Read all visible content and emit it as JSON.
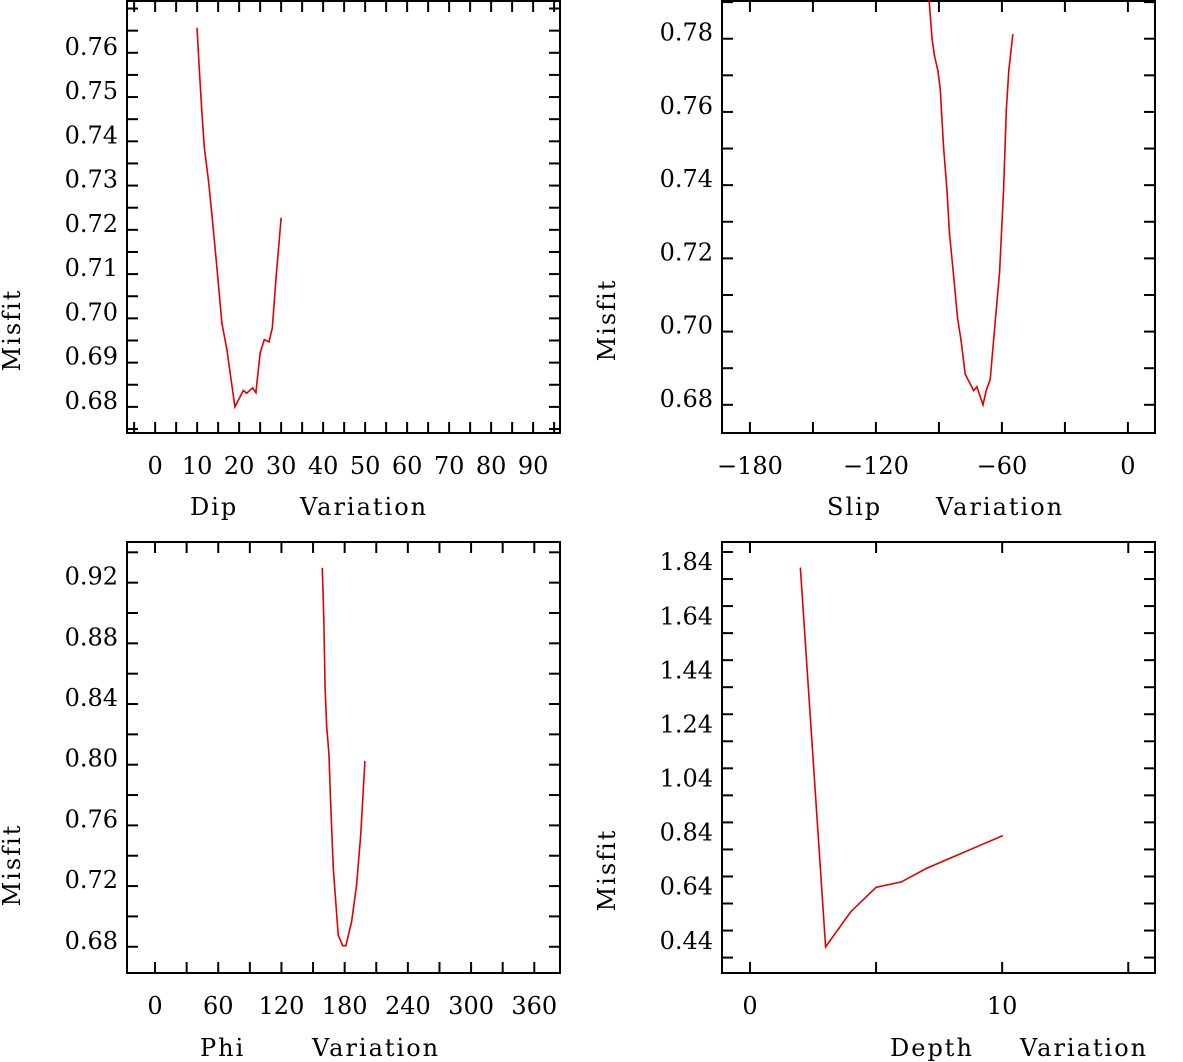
{
  "chart_data": [
    {
      "type": "line",
      "xlabel": "Dip",
      "xlabel2": "Variation",
      "ylabel": "Misfit",
      "xlim": [
        -6.7,
        96.4
      ],
      "ylim": [
        0.6741,
        0.7717
      ],
      "x_ticks": [
        0,
        10,
        20,
        30,
        40,
        50,
        60,
        70,
        80,
        90
      ],
      "x_tick_labels": [
        "0",
        "10",
        "20",
        "30",
        "40",
        "50",
        "60",
        "70",
        "80",
        "90"
      ],
      "x_minor_step": 5,
      "y_ticks": [
        0.68,
        0.69,
        0.7,
        0.71,
        0.72,
        0.73,
        0.74,
        0.75,
        0.76
      ],
      "y_tick_labels": [
        "0.68",
        "0.69",
        "0.70",
        "0.71",
        "0.72",
        "0.73",
        "0.74",
        "0.75",
        "0.76"
      ],
      "y_minor_step": 0.005,
      "line_color": "#e00000",
      "x": [
        10,
        10.5,
        11.1,
        11.7,
        12.7,
        13.5,
        14.7,
        15.9,
        17.1,
        19,
        21,
        21.8,
        23.2,
        24,
        25,
        26,
        27.1,
        27.9,
        28.8,
        30
      ],
      "y": [
        0.7655,
        0.7567,
        0.7469,
        0.7386,
        0.7311,
        0.7237,
        0.7115,
        0.6989,
        0.6928,
        0.68,
        0.6837,
        0.6831,
        0.6843,
        0.6832,
        0.6921,
        0.6952,
        0.6947,
        0.6978,
        0.7093,
        0.7226
      ]
    },
    {
      "type": "line",
      "xlabel": "Slip",
      "xlabel2": "Variation",
      "ylabel": "Misfit",
      "xlim": [
        -193.3,
        12.9
      ],
      "ylim": [
        0.6723,
        0.7903
      ],
      "x_ticks": [
        -180,
        -120,
        -60,
        0
      ],
      "x_tick_labels": [
        "−180",
        "−120",
        "−60",
        "0"
      ],
      "x_minor_step": 30,
      "y_ticks": [
        0.68,
        0.7,
        0.72,
        0.74,
        0.76,
        0.78
      ],
      "y_tick_labels": [
        "0.68",
        "0.70",
        "0.72",
        "0.74",
        "0.76",
        "0.78"
      ],
      "y_minor_step": 0.01,
      "line_color": "#e00000",
      "x": [
        -94.8,
        -93.3,
        -92.1,
        -90.5,
        -89.4,
        -87.8,
        -86.2,
        -85,
        -83,
        -81.1,
        -79.5,
        -77.5,
        -73.5,
        -71.9,
        -69,
        -67.5,
        -65.6,
        -63.2,
        -61.1,
        -59.2,
        -57.9,
        -56.7,
        -54.8
      ],
      "y": [
        0.7917,
        0.7801,
        0.7753,
        0.7713,
        0.7664,
        0.7507,
        0.7389,
        0.7271,
        0.7153,
        0.7036,
        0.6977,
        0.6884,
        0.6839,
        0.6849,
        0.68,
        0.6839,
        0.6869,
        0.7026,
        0.7163,
        0.7389,
        0.7605,
        0.7713,
        0.7811
      ]
    },
    {
      "type": "line",
      "xlabel": "Phi",
      "xlabel2": "Variation",
      "ylabel": "Misfit",
      "xlim": [
        -26.6,
        384.4
      ],
      "ylim": [
        0.6627,
        0.9468
      ],
      "x_ticks": [
        0,
        60,
        120,
        180,
        240,
        300,
        360
      ],
      "x_tick_labels": [
        "0",
        "60",
        "120",
        "180",
        "240",
        "300",
        "360"
      ],
      "x_minor_step": 30,
      "y_ticks": [
        0.68,
        0.72,
        0.76,
        0.8,
        0.84,
        0.88,
        0.92
      ],
      "y_tick_labels": [
        "0.68",
        "0.72",
        "0.76",
        "0.80",
        "0.84",
        "0.88",
        "0.92"
      ],
      "y_minor_step": 0.02,
      "line_color": "#e00000",
      "x": [
        158.8,
        160.3,
        161.3,
        162.9,
        165.1,
        166.7,
        169.2,
        173.9,
        178.1,
        181.2,
        186.6,
        191.3,
        195.2,
        199.2
      ],
      "y": [
        0.9294,
        0.8942,
        0.8525,
        0.8261,
        0.8064,
        0.7756,
        0.7317,
        0.6877,
        0.6807,
        0.6807,
        0.6965,
        0.7207,
        0.7536,
        0.802
      ]
    },
    {
      "type": "line",
      "xlabel": "Depth",
      "xlabel2": "Variation",
      "ylabel": "Misfit",
      "xlim": [
        -1.11,
        16.06
      ],
      "ylim": [
        0.343,
        1.937
      ],
      "x_ticks": [
        0,
        10
      ],
      "x_tick_labels": [
        "0",
        "10"
      ],
      "x_minor_step": 5,
      "y_ticks": [
        0.44,
        0.64,
        0.84,
        1.04,
        1.24,
        1.44,
        1.64,
        1.84
      ],
      "y_tick_labels": [
        "0.44",
        "0.64",
        "0.84",
        "1.04",
        "1.24",
        "1.44",
        "1.64",
        "1.84"
      ],
      "y_minor_step": 0.1,
      "line_color": "#e00000",
      "x": [
        2,
        3,
        4,
        5,
        6,
        7,
        8,
        9,
        10
      ],
      "y": [
        1.84,
        0.44,
        0.57,
        0.66,
        0.68,
        0.73,
        0.77,
        0.81,
        0.85
      ]
    }
  ]
}
